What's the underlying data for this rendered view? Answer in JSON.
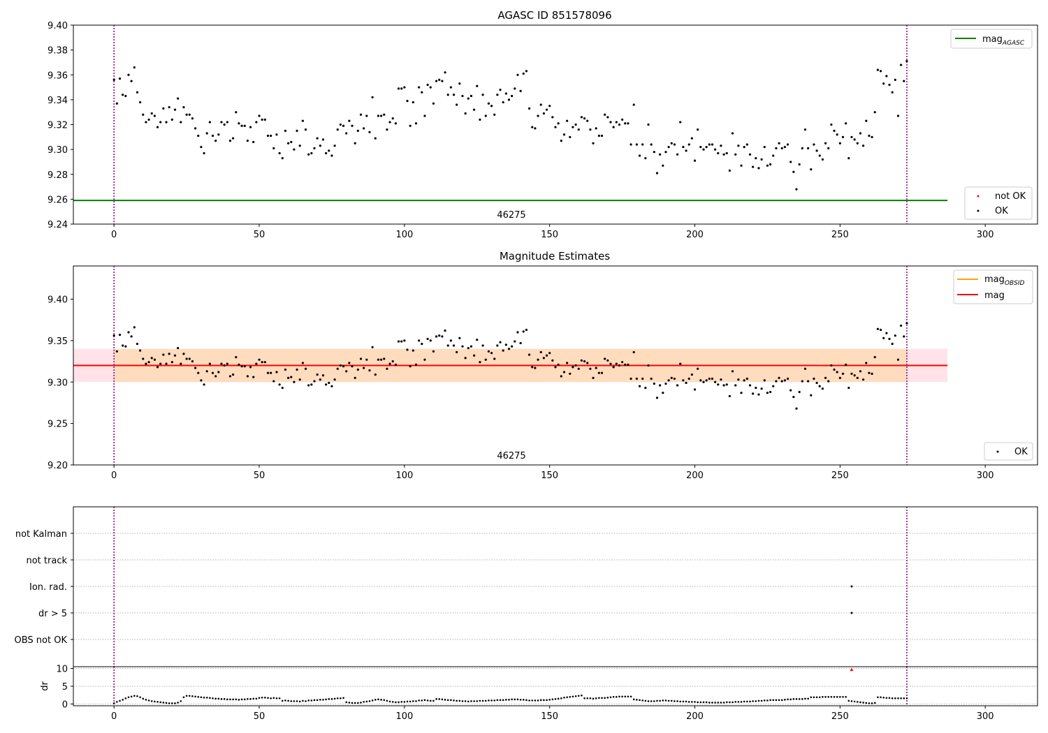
{
  "chart_data": [
    {
      "type": "scatter",
      "title": "AGASC ID 851578096",
      "xlim": [
        -14,
        318
      ],
      "ylim": [
        9.24,
        9.4
      ],
      "x_ticks": [
        "0",
        "50",
        "100",
        "150",
        "200",
        "250",
        "300"
      ],
      "y_ticks": [
        "9.24",
        "9.26",
        "9.28",
        "9.30",
        "9.32",
        "9.34",
        "9.36",
        "9.38",
        "9.40"
      ],
      "obsid_label": "46275",
      "obsid_boundaries": [
        0,
        273
      ],
      "reference_lines": [
        {
          "name": "mag_AGASC",
          "legend_main": "mag",
          "legend_sub": "AGASC",
          "y": 9.259,
          "x_range": [
            -14,
            287
          ],
          "color": "#008000"
        }
      ],
      "series": [
        {
          "name": "not OK",
          "color": "#ff0000",
          "marker": "dot",
          "points": []
        },
        {
          "name": "OK",
          "color": "#000000",
          "marker": "dot",
          "source": "shared_mag_series"
        }
      ],
      "legends": [
        {
          "position": "top-right",
          "entries": [
            "mag_AGASC"
          ]
        },
        {
          "position": "lower-right",
          "entries": [
            "not OK",
            "OK"
          ]
        }
      ]
    },
    {
      "type": "scatter",
      "title": "Magnitude Estimates",
      "xlim": [
        -14,
        318
      ],
      "ylim": [
        9.2,
        9.44
      ],
      "x_ticks": [
        "0",
        "50",
        "100",
        "150",
        "200",
        "250",
        "300"
      ],
      "y_ticks": [
        "9.20",
        "9.25",
        "9.30",
        "9.35",
        "9.40"
      ],
      "obsid_label": "46275",
      "obsid_boundaries": [
        0,
        273
      ],
      "bands": [
        {
          "name": "mag range",
          "y_range": [
            9.3,
            9.34
          ],
          "x_range": [
            -14,
            287
          ],
          "color": "#ffc0cb"
        },
        {
          "name": "mag_OBSID range",
          "y_range": [
            9.3,
            9.34
          ],
          "x_range": [
            0,
            273
          ],
          "color": "#ffdab9"
        }
      ],
      "reference_lines": [
        {
          "name": "mag_OBSID",
          "legend_main": "mag",
          "legend_sub": "OBSID",
          "y": 9.32,
          "x_range": [
            0,
            273
          ],
          "color": "#ffa500"
        },
        {
          "name": "mag",
          "legend_main": "mag",
          "legend_sub": "",
          "y": 9.32,
          "x_range": [
            -14,
            287
          ],
          "color": "#ff0000"
        }
      ],
      "series": [
        {
          "name": "OK",
          "color": "#000000",
          "marker": "dot",
          "source": "shared_mag_series"
        }
      ],
      "legends": [
        {
          "position": "top-right",
          "entries": [
            "mag_OBSID",
            "mag"
          ]
        },
        {
          "position": "lower-right",
          "entries": [
            "OK"
          ]
        }
      ]
    },
    {
      "type": "scatter",
      "title": "",
      "categories": [
        "not Kalman",
        "not track",
        "Ion. rad.",
        "dr > 5",
        "OBS not OK"
      ],
      "xlim": [
        -14,
        318
      ],
      "flags": [
        {
          "category": "Ion. rad.",
          "x": [
            254
          ]
        },
        {
          "category": "dr > 5",
          "x": [
            254
          ]
        }
      ],
      "obsid_boundaries": [
        0,
        273
      ]
    },
    {
      "type": "scatter",
      "title": "",
      "ylabel": "dr",
      "xlim": [
        -14,
        318
      ],
      "ylim": [
        -0.5,
        10.5
      ],
      "x_ticks": [
        "0",
        "50",
        "100",
        "150",
        "200",
        "250",
        "300"
      ],
      "y_ticks": [
        "0",
        "5",
        "10"
      ],
      "outlier": {
        "x": 254,
        "y": 9.7,
        "color": "#ff0000"
      },
      "obsid_boundaries": [
        0,
        273
      ],
      "series": [
        {
          "name": "dr",
          "color": "#000000",
          "marker": "dot",
          "source": "dr_series"
        }
      ]
    }
  ],
  "shared_mag_series": {
    "x_start": 0,
    "step": 1,
    "values": [
      9.356,
      9.337,
      9.357,
      9.344,
      9.343,
      9.36,
      9.355,
      9.366,
      9.346,
      9.338,
      9.328,
      9.322,
      9.324,
      9.329,
      9.327,
      9.318,
      9.322,
      9.333,
      9.322,
      9.334,
      9.324,
      9.332,
      9.341,
      9.322,
      9.334,
      9.328,
      9.328,
      9.325,
      9.317,
      9.311,
      9.302,
      9.297,
      9.313,
      9.322,
      9.311,
      9.307,
      9.312,
      9.322,
      9.32,
      9.322,
      9.307,
      9.309,
      9.33,
      9.321,
      9.319,
      9.319,
      9.307,
      9.318,
      9.306,
      9.322,
      9.327,
      9.324,
      9.324,
      9.311,
      9.311,
      9.301,
      9.312,
      9.297,
      9.293,
      9.315,
      9.305,
      9.306,
      9.3,
      9.315,
      9.303,
      9.323,
      9.316,
      9.296,
      9.297,
      9.301,
      9.309,
      9.303,
      9.308,
      9.297,
      9.299,
      9.295,
      9.303,
      9.316,
      9.32,
      9.319,
      9.313,
      9.323,
      9.319,
      9.305,
      9.315,
      9.328,
      9.317,
      9.327,
      9.314,
      9.342,
      9.309,
      9.327,
      9.327,
      9.328,
      9.316,
      9.322,
      9.325,
      9.321,
      9.349,
      9.349,
      9.35,
      9.339,
      9.319,
      9.338,
      9.321,
      9.35,
      9.346,
      9.327,
      9.352,
      9.35,
      9.337,
      9.355,
      9.356,
      9.355,
      9.362,
      9.344,
      9.35,
      9.344,
      9.336,
      9.353,
      9.343,
      9.329,
      9.341,
      9.343,
      9.332,
      9.351,
      9.324,
      9.344,
      9.327,
      9.337,
      9.335,
      9.328,
      9.344,
      9.348,
      9.338,
      9.345,
      9.34,
      9.343,
      9.349,
      9.36,
      9.347,
      9.361,
      9.363,
      9.333,
      9.318,
      9.317,
      9.327,
      9.336,
      9.329,
      9.332,
      9.335,
      9.326,
      9.318,
      9.321,
      9.307,
      9.312,
      9.323,
      9.31,
      9.318,
      9.32,
      9.316,
      9.326,
      9.325,
      9.323,
      9.316,
      9.305,
      9.317,
      9.311,
      9.311,
      9.328,
      9.326,
      9.322,
      9.318,
      9.322,
      9.32,
      9.324,
      9.321,
      9.321,
      9.304,
      9.336,
      9.304,
      9.295,
      9.304,
      9.293,
      9.32,
      9.304,
      9.298,
      9.281,
      9.296,
      9.287,
      9.298,
      9.302,
      9.305,
      9.304,
      9.296,
      9.322,
      9.302,
      9.299,
      9.304,
      9.309,
      9.291,
      9.316,
      9.302,
      9.3,
      9.302,
      9.304,
      9.304,
      9.3,
      9.297,
      9.303,
      9.296,
      9.297,
      9.283,
      9.313,
      9.296,
      9.303,
      9.287,
      9.302,
      9.304,
      9.296,
      9.286,
      9.293,
      9.285,
      9.292,
      9.302,
      9.287,
      9.288,
      9.295,
      9.301,
      9.305,
      9.301,
      9.302,
      9.304,
      9.29,
      9.282,
      9.268,
      9.288,
      9.301,
      9.316,
      9.301,
      9.284,
      9.304,
      9.299,
      9.295,
      9.292,
      9.305,
      9.301,
      9.32,
      9.315,
      9.312,
      9.305,
      9.31,
      9.321,
      9.293,
      9.31,
      9.308,
      9.305,
      9.313,
      9.303,
      9.323,
      9.311,
      9.31,
      9.33,
      9.364,
      9.363,
      9.353,
      9.359,
      9.352,
      9.346,
      9.356,
      9.327,
      9.368,
      9.355,
      9.371
    ]
  },
  "dr_series": {
    "x_start": 0,
    "step": 1,
    "values": [
      0.2,
      0.6,
      0.9,
      1.2,
      1.6,
      1.9,
      2.1,
      2.3,
      2.2,
      1.9,
      1.5,
      1.2,
      1.0,
      0.8,
      0.7,
      0.6,
      0.5,
      0.4,
      0.3,
      0.2,
      0.2,
      0.2,
      0.4,
      0.8,
      1.9,
      2.3,
      2.3,
      2.2,
      2.1,
      2.0,
      1.9,
      1.8,
      1.8,
      1.7,
      1.6,
      1.5,
      1.5,
      1.4,
      1.4,
      1.3,
      1.3,
      1.3,
      1.3,
      1.2,
      1.3,
      1.3,
      1.4,
      1.4,
      1.5,
      1.5,
      1.7,
      1.8,
      1.8,
      1.7,
      1.6,
      1.7,
      1.6,
      1.6,
      0.9,
      1.0,
      0.9,
      0.8,
      0.8,
      0.8,
      0.7,
      0.9,
      0.8,
      1.0,
      1.0,
      1.1,
      1.1,
      1.2,
      1.2,
      1.3,
      1.4,
      1.4,
      1.5,
      1.6,
      1.6,
      1.7,
      0.5,
      0.4,
      0.3,
      0.3,
      0.3,
      0.4,
      0.6,
      0.7,
      0.8,
      1.0,
      1.2,
      1.3,
      1.2,
      1.1,
      0.9,
      0.7,
      0.6,
      0.5,
      0.5,
      0.6,
      0.6,
      0.7,
      0.7,
      0.8,
      0.8,
      1.0,
      1.0,
      1.1,
      1.0,
      0.9,
      0.9,
      1.4,
      1.4,
      1.3,
      1.2,
      1.1,
      1.1,
      1.0,
      0.9,
      0.9,
      0.8,
      0.8,
      0.7,
      0.8,
      0.8,
      0.8,
      0.9,
      0.9,
      0.9,
      1.0,
      1.0,
      1.0,
      1.1,
      1.1,
      1.1,
      1.2,
      1.2,
      1.3,
      1.3,
      1.3,
      1.2,
      1.2,
      1.1,
      1.0,
      1.0,
      1.0,
      1.0,
      1.1,
      1.1,
      1.1,
      1.2,
      1.3,
      1.4,
      1.5,
      1.6,
      1.8,
      1.9,
      2.0,
      2.1,
      2.2,
      2.3,
      2.4,
      1.6,
      1.6,
      1.6,
      1.5,
      1.6,
      1.7,
      1.7,
      1.7,
      1.8,
      1.9,
      2.0,
      2.0,
      2.1,
      2.1,
      2.1,
      2.1,
      2.1,
      1.3,
      1.2,
      1.1,
      1.0,
      0.9,
      0.8,
      0.8,
      0.8,
      0.9,
      0.9,
      1.0,
      1.0,
      0.9,
      0.9,
      0.8,
      0.8,
      0.7,
      0.7,
      0.7,
      0.6,
      0.6,
      0.6,
      0.5,
      0.5,
      0.5,
      0.5,
      0.4,
      0.4,
      0.4,
      0.4,
      0.4,
      0.4,
      0.5,
      0.5,
      0.5,
      0.6,
      0.6,
      0.6,
      0.7,
      0.7,
      0.7,
      0.8,
      0.8,
      0.9,
      0.9,
      1.0,
      1.0,
      1.1,
      1.1,
      1.1,
      1.1,
      1.1,
      1.2,
      1.3,
      1.3,
      1.4,
      1.4,
      1.4,
      1.4,
      1.5,
      1.5,
      1.9,
      1.9,
      1.9,
      1.9,
      2.0,
      2.0,
      2.0,
      2.0,
      2.0,
      2.0,
      2.0,
      2.0,
      2.0,
      0.9,
      0.8,
      0.7,
      0.6,
      0.5,
      0.4,
      0.3,
      0.2,
      0.2,
      0.3,
      1.9,
      1.9,
      1.8,
      1.7,
      1.7,
      1.6,
      1.6,
      1.6,
      1.6,
      1.6,
      1.6
    ]
  }
}
